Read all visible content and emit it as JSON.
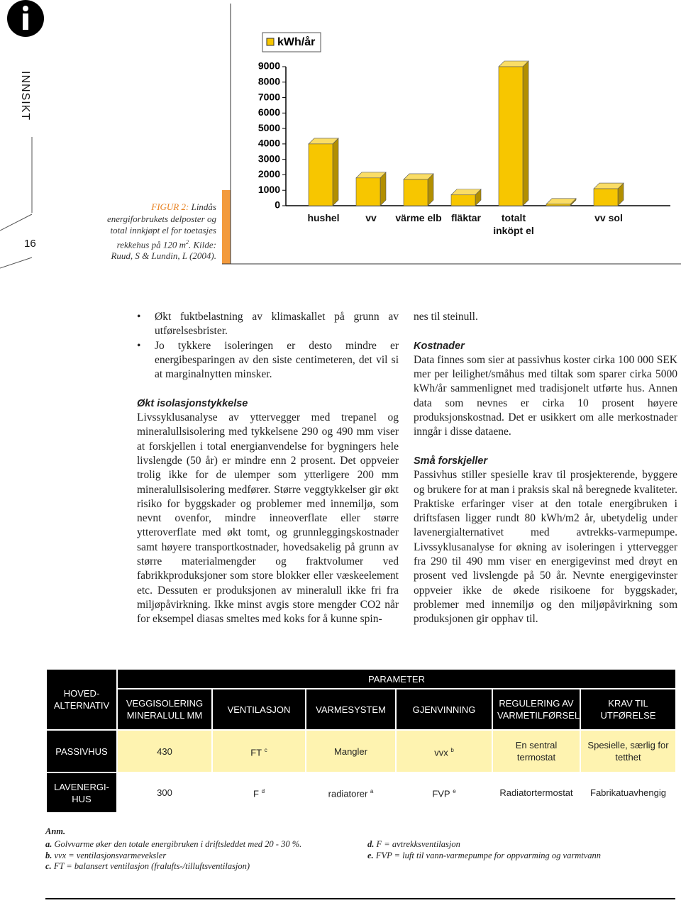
{
  "header": {
    "section": "INNSIKT",
    "page_number": "16"
  },
  "figure": {
    "label": "FIGUR 2:",
    "caption": "Lindås energiforbrukets delposter og total innkjøpt el for toetasjes rekkehus på 120 m",
    "caption_sup": "2",
    "caption_end": ". Kilde: Ruud, S & Lundin, L (2004)."
  },
  "chart_data": {
    "type": "bar",
    "categories": [
      "hushel",
      "vv",
      "värme elb",
      "fläktar",
      "totalt inköpt el",
      null,
      "vv sol"
    ],
    "series": [
      {
        "name": "kWh/år",
        "color": "#f7c600",
        "values": [
          4000,
          1800,
          1700,
          700,
          9000,
          100,
          1100
        ]
      }
    ],
    "ylim": [
      0,
      9000
    ],
    "yticks": [
      0,
      1000,
      2000,
      3000,
      4000,
      5000,
      6000,
      7000,
      8000,
      9000
    ],
    "legend": "top-left"
  },
  "body": {
    "bullets": [
      "Økt fuktbelastning av klimaskallet på grunn av utførelsesbrister.",
      "Jo tykkere isoleringen er desto mindre er energibesparingen av den siste centimeteren, det vil si at marginalnytten minsker."
    ],
    "sections": [
      {
        "heading": "Økt isolasjonstykkelse",
        "text": "Livssyklusanalyse av yttervegger med trepanel og mineralullsisolering med tykkelsene 290 og 490 mm viser at forskjellen i total energianvendelse for bygningers hele livslengde (50 år) er mindre enn 2 prosent. Det oppveier trolig ikke for de ulemper som ytterligere 200 mm mineralullsisolering medfører. Større veggtykkelser gir økt risiko for byggskader og problemer med innemiljø, som nevnt ovenfor, mindre inneoverflate eller større ytteroverflate med økt tomt, og grunnleggingskostnader samt høyere transportkostnader, hovedsakelig på grunn av større materialmengder og fraktvolumer ved fabrikkproduksjoner som store blokker eller væskeelement etc. Dessuten er produksjonen av mineralull ikke fri fra miljøpåvirkning. Ikke minst avgis store mengder CO2 når for eksempel diasas smeltes med koks for å kunne spin-",
        "continued": "nes til steinull."
      },
      {
        "heading": "Kostnader",
        "text": "Data finnes som sier at passivhus koster cirka 100 000 SEK mer per leilighet/småhus med tiltak som sparer cirka 5000 kWh/år sammenlignet med tradisjonelt utførte hus. Annen data som nevnes er cirka 10 prosent høyere produksjonskostnad. Det er usikkert om alle merkostnader inngår i disse dataene."
      },
      {
        "heading": "Små forskjeller",
        "text": "Passivhus stiller spesielle krav til prosjekterende, byggere og brukere for at man i praksis skal nå beregnede kvaliteter. Praktiske erfaringer viser at den totale energibruken i driftsfasen ligger rundt 80 kWh/m2 år, ubetydelig under lavenergialternativet med avtrekks-varmepumpe. Livssyklusanalyse for økning av isoleringen i yttervegger fra 290 til 490 mm viser en energigevinst med drøyt en prosent ved livslengde på 50 år. Nevnte energigevinster oppveier ikke de økede risikoene for byggskader, problemer med innemiljø og den miljøpåvirkning som produksjonen gir opphav til."
      }
    ]
  },
  "table": {
    "group_header": "PARAMETER",
    "columns": [
      "HOVED-ALTERNATIV",
      "VEGGISOLERING MINERALULL MM",
      "VENTILASJON",
      "VARMESYSTEM",
      "GJENVINNING",
      "REGULERING AV VARMETILFØRSEL",
      "KRAV TIL UTFØRELSE"
    ],
    "rows": [
      [
        "PASSIVHUS",
        430,
        {
          "text": "FT",
          "sup": "c"
        },
        "Mangler",
        {
          "text": "vvx",
          "sup": "b"
        },
        "En sentral termostat",
        "Spesielle, særlig for tetthet"
      ],
      [
        "LAVENERGI-HUS",
        300,
        {
          "text": "F",
          "sup": "d"
        },
        {
          "text": "radiatorer",
          "sup": "a"
        },
        {
          "text": "FVP",
          "sup": "e"
        },
        "Radiatortermostat",
        "Fabrikatuavhengig"
      ]
    ]
  },
  "notes": {
    "title": "Anm.",
    "columns": [
      [
        {
          "key": "a.",
          "text": "Golvvarme øker den totale energibruken i driftsleddet med 20 - 30 %."
        },
        {
          "key": "b.",
          "text": "vvx = ventilasjonsvarmeveksler"
        },
        {
          "key": "c.",
          "text": "FT = balansert ventilasjon (fralufts-/tilluftsventilasjon)"
        }
      ],
      [
        {
          "key": "d.",
          "text": "F = avtrekksventilasjon"
        },
        {
          "key": "e.",
          "text": "FVP = luft til vann-varmepumpe for oppvarming og varmtvann"
        }
      ]
    ]
  }
}
